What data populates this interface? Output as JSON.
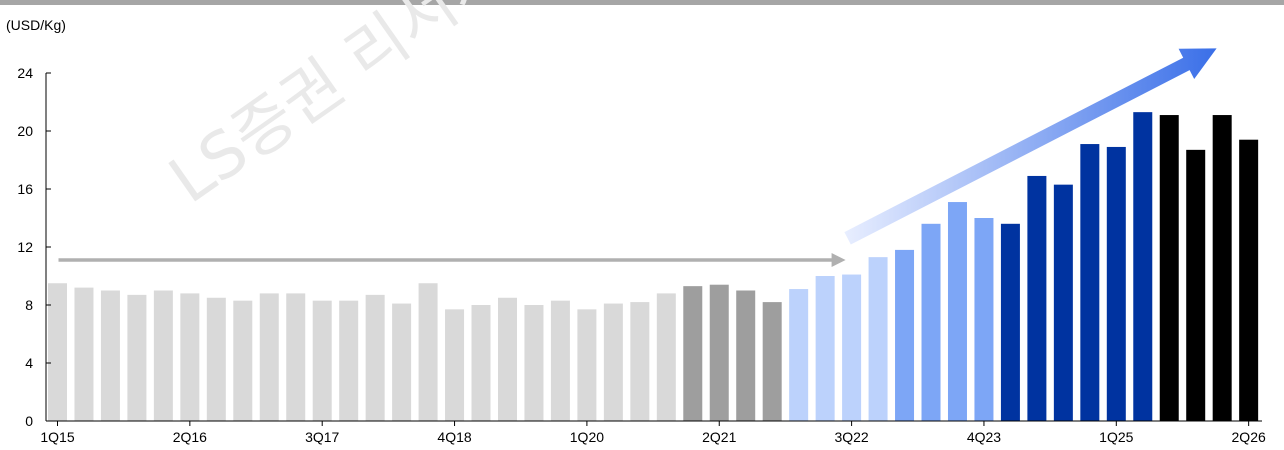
{
  "watermark": "LS증권 리서치",
  "chart_data": {
    "type": "bar",
    "unit_label": "(USD/Kg)",
    "ylim": [
      0,
      24
    ],
    "yticks": [
      0,
      4,
      8,
      12,
      16,
      20,
      24
    ],
    "grid": false,
    "categories": [
      "1Q15",
      "2Q15",
      "3Q15",
      "4Q15",
      "1Q16",
      "2Q16",
      "3Q16",
      "4Q16",
      "1Q17",
      "2Q17",
      "3Q17",
      "4Q17",
      "1Q18",
      "2Q18",
      "3Q18",
      "4Q18",
      "1Q19",
      "2Q19",
      "3Q19",
      "4Q19",
      "1Q20",
      "2Q20",
      "3Q20",
      "4Q20",
      "1Q21",
      "2Q21",
      "3Q21",
      "4Q21",
      "1Q22",
      "2Q22",
      "3Q22",
      "4Q22",
      "1Q23",
      "2Q23",
      "3Q23",
      "4Q23",
      "1Q24",
      "2Q24",
      "3Q24",
      "4Q24",
      "1Q25",
      "2Q25",
      "3Q25",
      "4Q25",
      "1Q26",
      "2Q26"
    ],
    "x_tick_labels": [
      "1Q15",
      "2Q16",
      "3Q17",
      "4Q18",
      "1Q20",
      "2Q21",
      "3Q22",
      "4Q23",
      "1Q25",
      "2Q26"
    ],
    "values": [
      9.5,
      9.2,
      9.0,
      8.7,
      9.0,
      8.8,
      8.5,
      8.3,
      8.8,
      8.8,
      8.3,
      8.3,
      8.7,
      8.1,
      9.5,
      7.7,
      8.0,
      8.5,
      8.0,
      8.3,
      7.7,
      8.1,
      8.2,
      8.8,
      9.3,
      9.4,
      9.0,
      8.2,
      9.1,
      10.0,
      10.1,
      11.3,
      11.8,
      13.6,
      15.1,
      14.0,
      13.6,
      16.9,
      16.3,
      19.1,
      18.9,
      21.3,
      21.1,
      18.7,
      21.1,
      19.4
    ],
    "bar_colors": [
      "#d9d9d9",
      "#d9d9d9",
      "#d9d9d9",
      "#d9d9d9",
      "#d9d9d9",
      "#d9d9d9",
      "#d9d9d9",
      "#d9d9d9",
      "#d9d9d9",
      "#d9d9d9",
      "#d9d9d9",
      "#d9d9d9",
      "#d9d9d9",
      "#d9d9d9",
      "#d9d9d9",
      "#d9d9d9",
      "#d9d9d9",
      "#d9d9d9",
      "#d9d9d9",
      "#d9d9d9",
      "#d9d9d9",
      "#d9d9d9",
      "#d9d9d9",
      "#d9d9d9",
      "#9e9e9e",
      "#9e9e9e",
      "#9e9e9e",
      "#9e9e9e",
      "#bcd2fc",
      "#bcd2fc",
      "#bcd2fc",
      "#bcd2fc",
      "#7da6f6",
      "#7da6f6",
      "#7da6f6",
      "#7da6f6",
      "#0033a0",
      "#0033a0",
      "#0033a0",
      "#0033a0",
      "#0033a0",
      "#0033a0",
      "#000000",
      "#000000",
      "#000000",
      "#000000"
    ],
    "annotations": [
      {
        "kind": "flat-arrow",
        "from_category": "1Q15",
        "to_category": "3Q22",
        "y": 11.1,
        "color": "#b0b0b0"
      },
      {
        "kind": "rising-arrow",
        "from_category": "3Q22",
        "to_category": "2Q26",
        "y_start": 12.6,
        "y_end": 25.7,
        "color_start": "#e8eeff",
        "color_end": "#3a6fe8"
      }
    ]
  }
}
